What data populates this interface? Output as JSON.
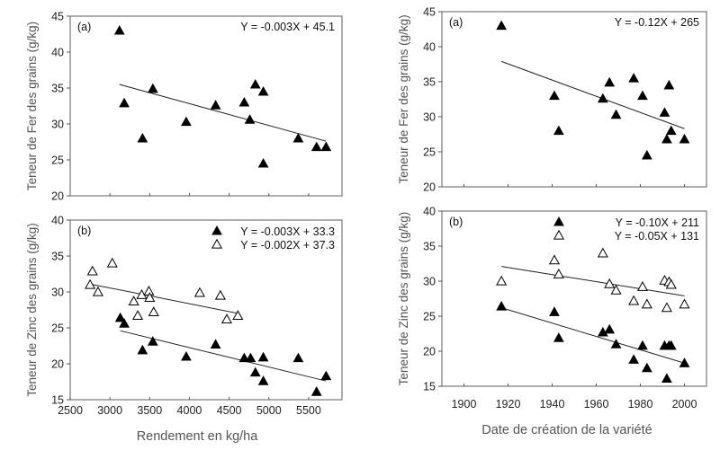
{
  "chart_data": [
    {
      "type": "scatter",
      "panel": "(a)",
      "title": "",
      "xlabel": "",
      "ylabel": "Teneur de Fer des grains (g/kg)",
      "xlim": [
        2500,
        5920
      ],
      "ylim": [
        20,
        45
      ],
      "xticks": [
        3000,
        3500,
        4000,
        4500,
        5000,
        5500
      ],
      "xtick_labels_shown": false,
      "yticks": [
        20,
        25,
        30,
        35,
        40,
        45
      ],
      "series": [
        {
          "name": "Fer",
          "marker": "filled-triangle",
          "regression": {
            "label": "Y = -0.003X + 45.1",
            "x_range": [
              3120,
              5720
            ],
            "y_range": [
              35.5,
              27.6
            ]
          },
          "points": [
            [
              3120,
              43.0
            ],
            [
              3180,
              32.9
            ],
            [
              3410,
              28.0
            ],
            [
              3540,
              34.9
            ],
            [
              3960,
              30.3
            ],
            [
              4330,
              32.6
            ],
            [
              4690,
              33.0
            ],
            [
              4760,
              30.6
            ],
            [
              4830,
              35.5
            ],
            [
              4930,
              34.5
            ],
            [
              4930,
              24.5
            ],
            [
              5370,
              28.0
            ],
            [
              5600,
              26.8
            ],
            [
              5720,
              26.8
            ]
          ]
        }
      ]
    },
    {
      "type": "scatter",
      "panel": "(b)",
      "title": "",
      "xlabel": "Rendement en kg/ha",
      "ylabel": "Teneur de Zinc des grains (g/kg)",
      "xlim": [
        2500,
        5920
      ],
      "ylim": [
        15,
        40
      ],
      "xticks": [
        2500,
        3000,
        3500,
        4000,
        4500,
        5000,
        5500
      ],
      "yticks": [
        15,
        20,
        25,
        30,
        35,
        40
      ],
      "legend": "top-right",
      "series": [
        {
          "name": "Y = -0.003X + 33.3",
          "marker": "filled-triangle",
          "regression": {
            "label": "Y = -0.003X + 33.3",
            "x_range": [
              3130,
              5720
            ],
            "y_range": [
              24.6,
              17.6
            ]
          },
          "points": [
            [
              3130,
              26.4
            ],
            [
              3180,
              25.6
            ],
            [
              3410,
              21.9
            ],
            [
              3540,
              23.1
            ],
            [
              3960,
              21.0
            ],
            [
              4330,
              22.7
            ],
            [
              4690,
              20.8
            ],
            [
              4770,
              20.8
            ],
            [
              4830,
              18.8
            ],
            [
              4930,
              20.9
            ],
            [
              4930,
              17.6
            ],
            [
              5370,
              20.8
            ],
            [
              5600,
              16.1
            ],
            [
              5720,
              18.3
            ]
          ]
        },
        {
          "name": "Y = -0.002X + 37.3",
          "marker": "open-triangle",
          "regression": {
            "label": "Y = -0.002X + 37.3",
            "x_range": [
              2750,
              4620
            ],
            "y_range": [
              31.1,
              27.0
            ]
          },
          "points": [
            [
              2750,
              31.0
            ],
            [
              2780,
              32.9
            ],
            [
              2850,
              30.0
            ],
            [
              3030,
              34.0
            ],
            [
              3300,
              28.7
            ],
            [
              3350,
              26.7
            ],
            [
              3400,
              29.6
            ],
            [
              3490,
              30.1
            ],
            [
              3500,
              29.2
            ],
            [
              3550,
              27.2
            ],
            [
              4130,
              29.9
            ],
            [
              4390,
              29.5
            ],
            [
              4470,
              26.2
            ],
            [
              4610,
              26.7
            ]
          ]
        }
      ]
    },
    {
      "type": "scatter",
      "panel": "(a)",
      "title": "",
      "xlabel": "",
      "ylabel": "Teneur de Fer des grains (g/kg)",
      "xlim": [
        1890,
        2010
      ],
      "ylim": [
        20,
        45
      ],
      "xticks": [
        1900,
        1920,
        1940,
        1960,
        1980,
        2000
      ],
      "xtick_labels_shown": false,
      "yticks": [
        20,
        25,
        30,
        35,
        40,
        45
      ],
      "series": [
        {
          "name": "Fer",
          "marker": "filled-triangle",
          "regression": {
            "label": "Y = -0.12X + 265",
            "x_range": [
              1917,
              2000
            ],
            "y_range": [
              37.9,
              28.3
            ]
          },
          "points": [
            [
              1917,
              43.0
            ],
            [
              1941,
              33.0
            ],
            [
              1943,
              28.0
            ],
            [
              1963,
              32.6
            ],
            [
              1966,
              34.9
            ],
            [
              1969,
              30.3
            ],
            [
              1977,
              35.5
            ],
            [
              1981,
              33.0
            ],
            [
              1983,
              24.5
            ],
            [
              1991,
              30.6
            ],
            [
              1992,
              26.8
            ],
            [
              1993,
              34.5
            ],
            [
              1994,
              28.0
            ],
            [
              2000,
              26.8
            ]
          ]
        }
      ]
    },
    {
      "type": "scatter",
      "panel": "(b)",
      "title": "",
      "xlabel": "Date de création de la variété",
      "ylabel": "Teneur de Zinc des grains (g/kg)",
      "xlim": [
        1890,
        2010
      ],
      "ylim": [
        15,
        40
      ],
      "xticks": [
        1900,
        1920,
        1940,
        1960,
        1980,
        2000
      ],
      "yticks": [
        15,
        20,
        25,
        30,
        35,
        40
      ],
      "legend": "top-right",
      "series": [
        {
          "name": "Y = -0.10X + 211",
          "marker": "filled-triangle",
          "regression": {
            "label": "Y = -0.10X + 211",
            "x_range": [
              1917,
              2000
            ],
            "y_range": [
              26.2,
              18.3
            ]
          },
          "points": [
            [
              1917,
              26.4
            ],
            [
              1941,
              25.6
            ],
            [
              1943,
              21.9
            ],
            [
              1963,
              22.7
            ],
            [
              1966,
              23.1
            ],
            [
              1969,
              21.0
            ],
            [
              1977,
              18.8
            ],
            [
              1981,
              20.8
            ],
            [
              1983,
              17.6
            ],
            [
              1991,
              20.8
            ],
            [
              1992,
              16.1
            ],
            [
              1993,
              20.8
            ],
            [
              1994,
              20.8
            ],
            [
              2000,
              18.3
            ]
          ]
        },
        {
          "name": "Y = -0.05X + 131",
          "marker": "open-triangle",
          "regression": {
            "label": "Y = -0.05X + 131",
            "x_range": [
              1917,
              2000
            ],
            "y_range": [
              32.1,
              27.9
            ]
          },
          "points": [
            [
              1917,
              30.0
            ],
            [
              1941,
              33.0
            ],
            [
              1943,
              31.0
            ],
            [
              1963,
              34.0
            ],
            [
              1966,
              29.6
            ],
            [
              1969,
              28.7
            ],
            [
              1977,
              27.2
            ],
            [
              1981,
              29.2
            ],
            [
              1983,
              26.7
            ],
            [
              1991,
              30.1
            ],
            [
              1992,
              26.2
            ],
            [
              1993,
              29.9
            ],
            [
              1994,
              29.5
            ],
            [
              2000,
              26.7
            ]
          ]
        }
      ]
    }
  ]
}
